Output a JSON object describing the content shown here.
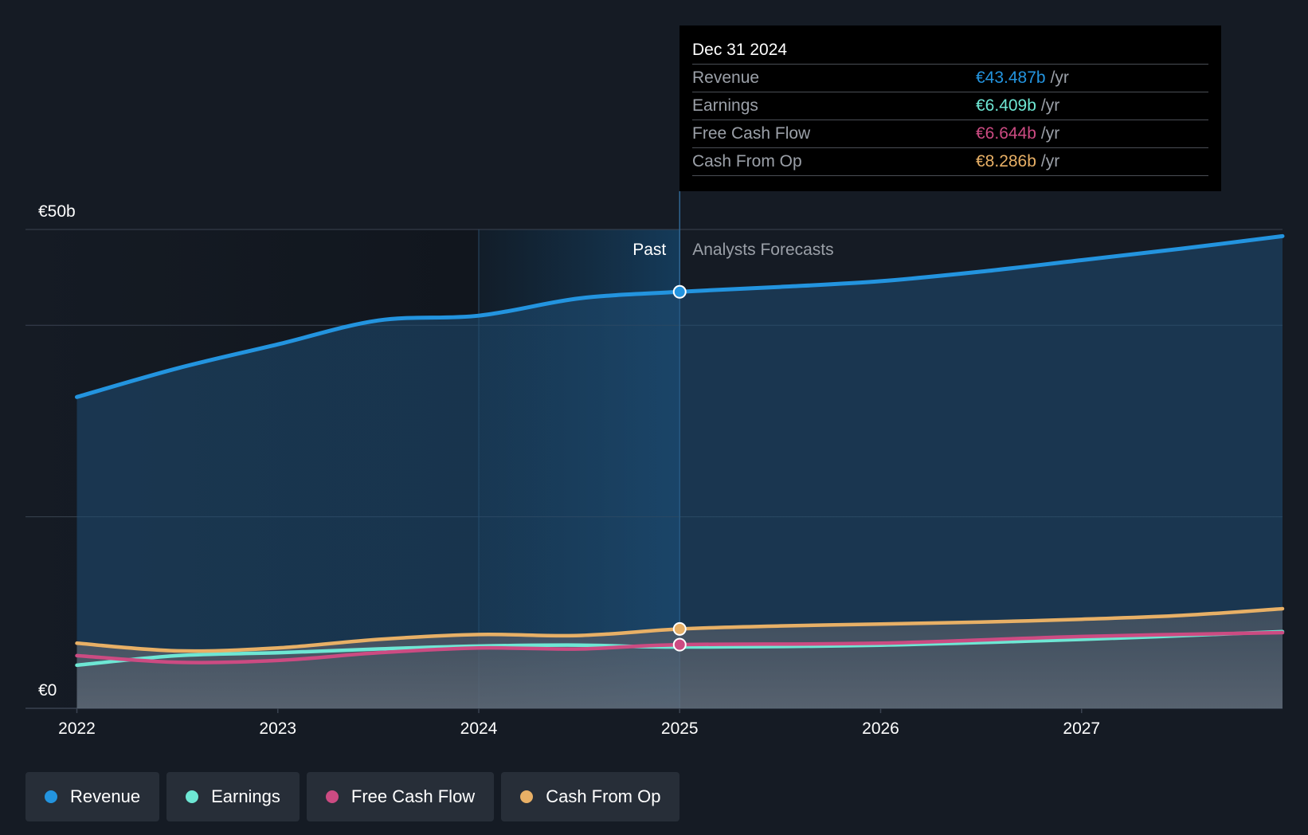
{
  "colors": {
    "revenue": "#2394df",
    "earnings": "#6ee7d4",
    "free_cash_flow": "#cc4b82",
    "cash_from_op": "#e8b066"
  },
  "tooltip": {
    "date": "Dec 31 2024",
    "rows": [
      {
        "label": "Revenue",
        "value": "€43.487b",
        "unit": "/yr"
      },
      {
        "label": "Earnings",
        "value": "€6.409b",
        "unit": "/yr"
      },
      {
        "label": "Free Cash Flow",
        "value": "€6.644b",
        "unit": "/yr"
      },
      {
        "label": "Cash From Op",
        "value": "€8.286b",
        "unit": "/yr"
      }
    ]
  },
  "legend": [
    {
      "label": "Revenue",
      "key": "revenue"
    },
    {
      "label": "Earnings",
      "key": "earnings"
    },
    {
      "label": "Free Cash Flow",
      "key": "free_cash_flow"
    },
    {
      "label": "Cash From Op",
      "key": "cash_from_op"
    }
  ],
  "chart_data": {
    "type": "line",
    "title": "",
    "xlabel": "",
    "ylabel": "",
    "ylim": [
      0,
      50
    ],
    "xlim": [
      2022.0,
      2028.0
    ],
    "y_tick_labels": [
      {
        "value": 50,
        "label": "€50b"
      },
      {
        "value": 0,
        "label": "€0"
      }
    ],
    "x_ticks": [
      2022,
      2023,
      2024,
      2025,
      2026,
      2027
    ],
    "x_tick_labels": [
      "2022",
      "2023",
      "2024",
      "2025",
      "2026",
      "2027"
    ],
    "gridlines": [
      50,
      40,
      20
    ],
    "past_label": "Past",
    "forecast_label": "Analysts Forecasts",
    "divider_x": 2025.0,
    "highlight_start_x": 2024.0,
    "marker_x": 2025.0,
    "series": [
      {
        "name": "Revenue",
        "key": "revenue",
        "x": [
          2022.0,
          2022.5,
          2023.0,
          2023.5,
          2024.0,
          2024.5,
          2025.0,
          2025.5,
          2026.0,
          2026.5,
          2027.0,
          2027.5,
          2028.0
        ],
        "y": [
          32.5,
          35.5,
          38.0,
          40.5,
          41.0,
          42.8,
          43.487,
          44.0,
          44.6,
          45.6,
          46.8,
          48.0,
          49.3
        ]
      },
      {
        "name": "Earnings",
        "key": "earnings",
        "x": [
          2022.0,
          2022.5,
          2023.0,
          2023.5,
          2024.0,
          2024.5,
          2025.0,
          2026.0,
          2027.0,
          2028.0
        ],
        "y": [
          4.5,
          5.5,
          5.8,
          6.2,
          6.5,
          6.6,
          6.409,
          6.6,
          7.2,
          8.0
        ]
      },
      {
        "name": "Free Cash Flow",
        "key": "free_cash_flow",
        "x": [
          2022.0,
          2022.5,
          2023.0,
          2023.5,
          2024.0,
          2024.5,
          2025.0,
          2026.0,
          2027.0,
          2028.0
        ],
        "y": [
          5.5,
          4.8,
          5.0,
          5.8,
          6.3,
          6.2,
          6.644,
          6.8,
          7.5,
          7.9
        ]
      },
      {
        "name": "Cash From Op",
        "key": "cash_from_op",
        "x": [
          2022.0,
          2022.5,
          2023.0,
          2023.5,
          2024.0,
          2024.5,
          2025.0,
          2025.5,
          2026.0,
          2026.5,
          2027.0,
          2027.5,
          2028.0
        ],
        "y": [
          6.8,
          6.0,
          6.3,
          7.2,
          7.7,
          7.6,
          8.286,
          8.6,
          8.8,
          9.0,
          9.3,
          9.7,
          10.4
        ]
      }
    ]
  }
}
